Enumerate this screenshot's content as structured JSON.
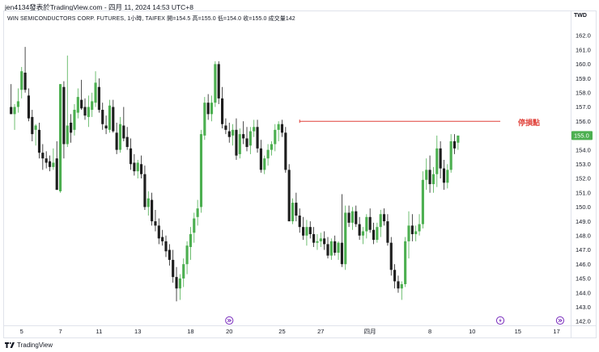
{
  "header": {
    "title": "jen4134發表於TradingView.com - 四月 11, 2024 14:53 UTC+8"
  },
  "symbol_line": {
    "text": "WIN SEMICONDUCTORS CORP. FUTURES, 1小時, TAIFEX  開=154.5  高=155.0  低=154.0  收=155.0  成交量142"
  },
  "currency": "TWD",
  "annotation": {
    "label": "停損點",
    "price": 156.0,
    "color": "#e0413a"
  },
  "last_price_tag": "155.0",
  "footer": {
    "brand": "TradingView"
  },
  "colors": {
    "up": "#4caf50",
    "down": "#1e1e1e",
    "grid": "#f0f3fa",
    "last_price_bg": "#4caf50",
    "icon_purple": "#7b2fbe"
  },
  "chart_data": {
    "type": "candlestick",
    "ylim": [
      142.0,
      162.5
    ],
    "y_ticks": [
      "162.0",
      "161.0",
      "160.0",
      "159.0",
      "158.0",
      "157.0",
      "156.0",
      "155.0",
      "154.0",
      "153.0",
      "152.0",
      "151.0",
      "150.0",
      "149.0",
      "148.0",
      "147.0",
      "146.0",
      "145.0",
      "144.0",
      "143.0",
      "142.0"
    ],
    "x_ticks": [
      "5",
      "7",
      "11",
      "13",
      "18",
      "20",
      "25",
      "27",
      "四月",
      "8",
      "10",
      "15",
      "17"
    ],
    "x_tick_index": [
      3,
      14,
      25,
      36,
      51,
      62,
      77,
      88,
      102,
      119,
      131,
      144,
      155
    ],
    "xlim": [
      -2,
      159
    ],
    "event_icons": [
      {
        "icon": "forward-arrow-icon",
        "index": 62
      },
      {
        "icon": "lightning-icon",
        "index": 139
      },
      {
        "icon": "forward-arrow-icon",
        "index": 156
      }
    ],
    "annotation_start_index": 82,
    "annotation_end_index": 139,
    "candles": [
      {
        "o": 157.0,
        "h": 158.6,
        "l": 156.5,
        "c": 156.5
      },
      {
        "o": 156.5,
        "h": 157.2,
        "l": 155.4,
        "c": 157.0
      },
      {
        "o": 157.0,
        "h": 158.3,
        "l": 156.6,
        "c": 157.4
      },
      {
        "o": 158.2,
        "h": 159.8,
        "l": 157.6,
        "c": 159.5
      },
      {
        "o": 159.4,
        "h": 161.2,
        "l": 158.0,
        "c": 158.2
      },
      {
        "o": 157.8,
        "h": 158.3,
        "l": 156.0,
        "c": 156.2
      },
      {
        "o": 156.3,
        "h": 156.8,
        "l": 154.6,
        "c": 155.1
      },
      {
        "o": 155.4,
        "h": 155.8,
        "l": 154.3,
        "c": 155.7
      },
      {
        "o": 155.4,
        "h": 155.9,
        "l": 153.4,
        "c": 153.8
      },
      {
        "o": 153.8,
        "h": 154.4,
        "l": 152.6,
        "c": 153.4
      },
      {
        "o": 153.4,
        "h": 153.9,
        "l": 152.7,
        "c": 153.1
      },
      {
        "o": 153.2,
        "h": 153.6,
        "l": 152.5,
        "c": 152.8
      },
      {
        "o": 152.8,
        "h": 154.1,
        "l": 152.6,
        "c": 153.1
      },
      {
        "o": 153.4,
        "h": 154.6,
        "l": 151.2,
        "c": 151.2
      },
      {
        "o": 151.1,
        "h": 158.6,
        "l": 151.0,
        "c": 158.6
      },
      {
        "o": 158.4,
        "h": 158.8,
        "l": 153.4,
        "c": 154.4
      },
      {
        "o": 154.4,
        "h": 160.6,
        "l": 154.2,
        "c": 155.7
      },
      {
        "o": 155.9,
        "h": 156.5,
        "l": 154.5,
        "c": 155.2
      },
      {
        "o": 155.4,
        "h": 157.2,
        "l": 155.0,
        "c": 156.8
      },
      {
        "o": 156.6,
        "h": 158.3,
        "l": 156.2,
        "c": 157.7
      },
      {
        "o": 157.5,
        "h": 158.9,
        "l": 156.8,
        "c": 156.9
      },
      {
        "o": 157.0,
        "h": 157.6,
        "l": 156.1,
        "c": 156.4
      },
      {
        "o": 156.3,
        "h": 157.8,
        "l": 155.6,
        "c": 157.0
      },
      {
        "o": 156.8,
        "h": 158.0,
        "l": 156.3,
        "c": 157.4
      },
      {
        "o": 157.3,
        "h": 159.5,
        "l": 157.0,
        "c": 158.7
      },
      {
        "o": 158.4,
        "h": 159.0,
        "l": 156.6,
        "c": 156.8
      },
      {
        "o": 156.8,
        "h": 157.3,
        "l": 155.4,
        "c": 155.8
      },
      {
        "o": 155.7,
        "h": 156.4,
        "l": 155.1,
        "c": 155.5
      },
      {
        "o": 155.4,
        "h": 157.5,
        "l": 155.2,
        "c": 157.1
      },
      {
        "o": 157.0,
        "h": 157.5,
        "l": 155.2,
        "c": 155.3
      },
      {
        "o": 155.2,
        "h": 155.9,
        "l": 153.7,
        "c": 154.0
      },
      {
        "o": 154.0,
        "h": 156.3,
        "l": 153.8,
        "c": 155.8
      },
      {
        "o": 155.7,
        "h": 157.0,
        "l": 154.6,
        "c": 154.8
      },
      {
        "o": 154.9,
        "h": 155.6,
        "l": 154.0,
        "c": 154.2
      },
      {
        "o": 154.1,
        "h": 154.8,
        "l": 152.6,
        "c": 153.0
      },
      {
        "o": 153.1,
        "h": 153.7,
        "l": 152.2,
        "c": 152.5
      },
      {
        "o": 152.5,
        "h": 153.3,
        "l": 152.0,
        "c": 153.1
      },
      {
        "o": 153.0,
        "h": 153.6,
        "l": 152.0,
        "c": 152.3
      },
      {
        "o": 152.3,
        "h": 152.9,
        "l": 149.8,
        "c": 150.0
      },
      {
        "o": 150.0,
        "h": 151.1,
        "l": 149.4,
        "c": 150.6
      },
      {
        "o": 150.5,
        "h": 151.0,
        "l": 148.7,
        "c": 149.0
      },
      {
        "o": 149.0,
        "h": 149.8,
        "l": 148.3,
        "c": 148.7
      },
      {
        "o": 148.7,
        "h": 149.2,
        "l": 147.4,
        "c": 147.8
      },
      {
        "o": 147.9,
        "h": 148.4,
        "l": 147.3,
        "c": 147.6
      },
      {
        "o": 147.6,
        "h": 148.0,
        "l": 146.5,
        "c": 146.9
      },
      {
        "o": 147.0,
        "h": 147.4,
        "l": 145.9,
        "c": 146.3
      },
      {
        "o": 146.3,
        "h": 147.0,
        "l": 144.7,
        "c": 145.1
      },
      {
        "o": 145.1,
        "h": 145.8,
        "l": 143.4,
        "c": 144.3
      },
      {
        "o": 144.3,
        "h": 145.3,
        "l": 143.5,
        "c": 145.0
      },
      {
        "o": 145.0,
        "h": 146.4,
        "l": 144.4,
        "c": 146.0
      },
      {
        "o": 146.0,
        "h": 147.6,
        "l": 145.3,
        "c": 147.3
      },
      {
        "o": 147.2,
        "h": 148.6,
        "l": 146.3,
        "c": 148.1
      },
      {
        "o": 148.2,
        "h": 149.6,
        "l": 147.5,
        "c": 149.2
      },
      {
        "o": 149.3,
        "h": 150.5,
        "l": 148.7,
        "c": 149.9
      },
      {
        "o": 150.0,
        "h": 155.4,
        "l": 149.6,
        "c": 155.1
      },
      {
        "o": 155.0,
        "h": 157.7,
        "l": 154.7,
        "c": 157.3
      },
      {
        "o": 157.3,
        "h": 157.9,
        "l": 156.1,
        "c": 156.5
      },
      {
        "o": 156.5,
        "h": 157.8,
        "l": 156.0,
        "c": 157.3
      },
      {
        "o": 157.3,
        "h": 160.2,
        "l": 157.0,
        "c": 160.0
      },
      {
        "o": 160.0,
        "h": 160.2,
        "l": 157.2,
        "c": 157.6
      },
      {
        "o": 157.6,
        "h": 158.4,
        "l": 155.5,
        "c": 155.8
      },
      {
        "o": 155.7,
        "h": 156.2,
        "l": 155.1,
        "c": 155.4
      },
      {
        "o": 155.3,
        "h": 155.9,
        "l": 154.5,
        "c": 154.9
      },
      {
        "o": 155.0,
        "h": 155.8,
        "l": 154.3,
        "c": 155.4
      },
      {
        "o": 155.4,
        "h": 156.2,
        "l": 153.3,
        "c": 153.6
      },
      {
        "o": 153.7,
        "h": 155.5,
        "l": 153.4,
        "c": 155.1
      },
      {
        "o": 155.1,
        "h": 156.0,
        "l": 154.4,
        "c": 154.8
      },
      {
        "o": 154.8,
        "h": 155.6,
        "l": 153.9,
        "c": 154.2
      },
      {
        "o": 154.3,
        "h": 155.6,
        "l": 153.7,
        "c": 155.3
      },
      {
        "o": 155.3,
        "h": 156.1,
        "l": 154.9,
        "c": 155.6
      },
      {
        "o": 155.6,
        "h": 156.1,
        "l": 153.8,
        "c": 154.1
      },
      {
        "o": 154.1,
        "h": 154.7,
        "l": 152.4,
        "c": 152.6
      },
      {
        "o": 152.6,
        "h": 153.6,
        "l": 152.3,
        "c": 153.4
      },
      {
        "o": 153.4,
        "h": 154.4,
        "l": 152.9,
        "c": 154.0
      },
      {
        "o": 154.0,
        "h": 154.6,
        "l": 153.6,
        "c": 154.4
      },
      {
        "o": 154.4,
        "h": 155.8,
        "l": 153.9,
        "c": 155.4
      },
      {
        "o": 155.4,
        "h": 156.0,
        "l": 154.6,
        "c": 155.8
      },
      {
        "o": 155.8,
        "h": 156.1,
        "l": 154.9,
        "c": 155.2
      },
      {
        "o": 155.2,
        "h": 155.6,
        "l": 152.4,
        "c": 152.6
      },
      {
        "o": 152.6,
        "h": 153.0,
        "l": 149.0,
        "c": 149.0
      },
      {
        "o": 149.0,
        "h": 150.6,
        "l": 148.8,
        "c": 150.3
      },
      {
        "o": 150.3,
        "h": 151.0,
        "l": 149.0,
        "c": 149.4
      },
      {
        "o": 149.4,
        "h": 149.9,
        "l": 148.2,
        "c": 148.6
      },
      {
        "o": 148.6,
        "h": 149.3,
        "l": 147.7,
        "c": 148.0
      },
      {
        "o": 148.0,
        "h": 149.1,
        "l": 147.3,
        "c": 148.6
      },
      {
        "o": 148.6,
        "h": 149.0,
        "l": 147.8,
        "c": 148.1
      },
      {
        "o": 148.1,
        "h": 148.6,
        "l": 147.2,
        "c": 147.5
      },
      {
        "o": 147.5,
        "h": 148.1,
        "l": 147.0,
        "c": 147.6
      },
      {
        "o": 147.6,
        "h": 148.2,
        "l": 147.2,
        "c": 147.8
      },
      {
        "o": 147.8,
        "h": 148.3,
        "l": 147.0,
        "c": 147.4
      },
      {
        "o": 147.4,
        "h": 147.9,
        "l": 146.4,
        "c": 146.6
      },
      {
        "o": 146.6,
        "h": 147.8,
        "l": 146.3,
        "c": 147.6
      },
      {
        "o": 147.6,
        "h": 148.0,
        "l": 146.6,
        "c": 146.8
      },
      {
        "o": 146.8,
        "h": 147.6,
        "l": 146.3,
        "c": 147.5
      },
      {
        "o": 147.5,
        "h": 150.9,
        "l": 145.8,
        "c": 146.0
      },
      {
        "o": 146.0,
        "h": 150.1,
        "l": 145.6,
        "c": 149.6
      },
      {
        "o": 149.6,
        "h": 150.1,
        "l": 148.6,
        "c": 148.9
      },
      {
        "o": 148.9,
        "h": 150.0,
        "l": 148.4,
        "c": 149.7
      },
      {
        "o": 149.7,
        "h": 150.1,
        "l": 148.6,
        "c": 148.8
      },
      {
        "o": 148.8,
        "h": 149.3,
        "l": 147.7,
        "c": 148.0
      },
      {
        "o": 148.0,
        "h": 148.6,
        "l": 147.4,
        "c": 148.3
      },
      {
        "o": 148.3,
        "h": 149.5,
        "l": 147.8,
        "c": 149.3
      },
      {
        "o": 149.3,
        "h": 149.9,
        "l": 148.2,
        "c": 148.4
      },
      {
        "o": 148.4,
        "h": 148.9,
        "l": 147.4,
        "c": 147.7
      },
      {
        "o": 147.7,
        "h": 148.9,
        "l": 147.5,
        "c": 148.6
      },
      {
        "o": 148.6,
        "h": 149.8,
        "l": 147.9,
        "c": 149.5
      },
      {
        "o": 149.5,
        "h": 149.9,
        "l": 148.7,
        "c": 149.0
      },
      {
        "o": 149.0,
        "h": 149.5,
        "l": 147.3,
        "c": 147.5
      },
      {
        "o": 147.5,
        "h": 147.9,
        "l": 145.2,
        "c": 145.6
      },
      {
        "o": 145.6,
        "h": 146.0,
        "l": 144.3,
        "c": 144.8
      },
      {
        "o": 144.8,
        "h": 145.2,
        "l": 144.0,
        "c": 144.3
      },
      {
        "o": 144.3,
        "h": 144.8,
        "l": 143.5,
        "c": 144.6
      },
      {
        "o": 144.6,
        "h": 147.9,
        "l": 144.4,
        "c": 147.6
      },
      {
        "o": 147.6,
        "h": 149.7,
        "l": 146.4,
        "c": 148.7
      },
      {
        "o": 148.7,
        "h": 149.5,
        "l": 147.6,
        "c": 148.1
      },
      {
        "o": 148.1,
        "h": 148.7,
        "l": 147.6,
        "c": 148.3
      },
      {
        "o": 148.3,
        "h": 149.5,
        "l": 148.0,
        "c": 148.8
      },
      {
        "o": 148.8,
        "h": 152.5,
        "l": 148.5,
        "c": 151.9
      },
      {
        "o": 151.9,
        "h": 153.4,
        "l": 151.2,
        "c": 152.6
      },
      {
        "o": 152.6,
        "h": 153.6,
        "l": 151.0,
        "c": 151.6
      },
      {
        "o": 151.6,
        "h": 152.8,
        "l": 151.0,
        "c": 152.3
      },
      {
        "o": 152.3,
        "h": 155.0,
        "l": 151.4,
        "c": 154.1
      },
      {
        "o": 154.1,
        "h": 154.6,
        "l": 152.0,
        "c": 152.7
      },
      {
        "o": 152.7,
        "h": 153.3,
        "l": 151.2,
        "c": 151.7
      },
      {
        "o": 151.7,
        "h": 153.0,
        "l": 151.3,
        "c": 152.6
      },
      {
        "o": 152.6,
        "h": 155.1,
        "l": 152.4,
        "c": 154.6
      },
      {
        "o": 154.6,
        "h": 155.1,
        "l": 153.7,
        "c": 154.1
      },
      {
        "o": 154.5,
        "h": 155.0,
        "l": 154.0,
        "c": 155.0
      }
    ]
  }
}
